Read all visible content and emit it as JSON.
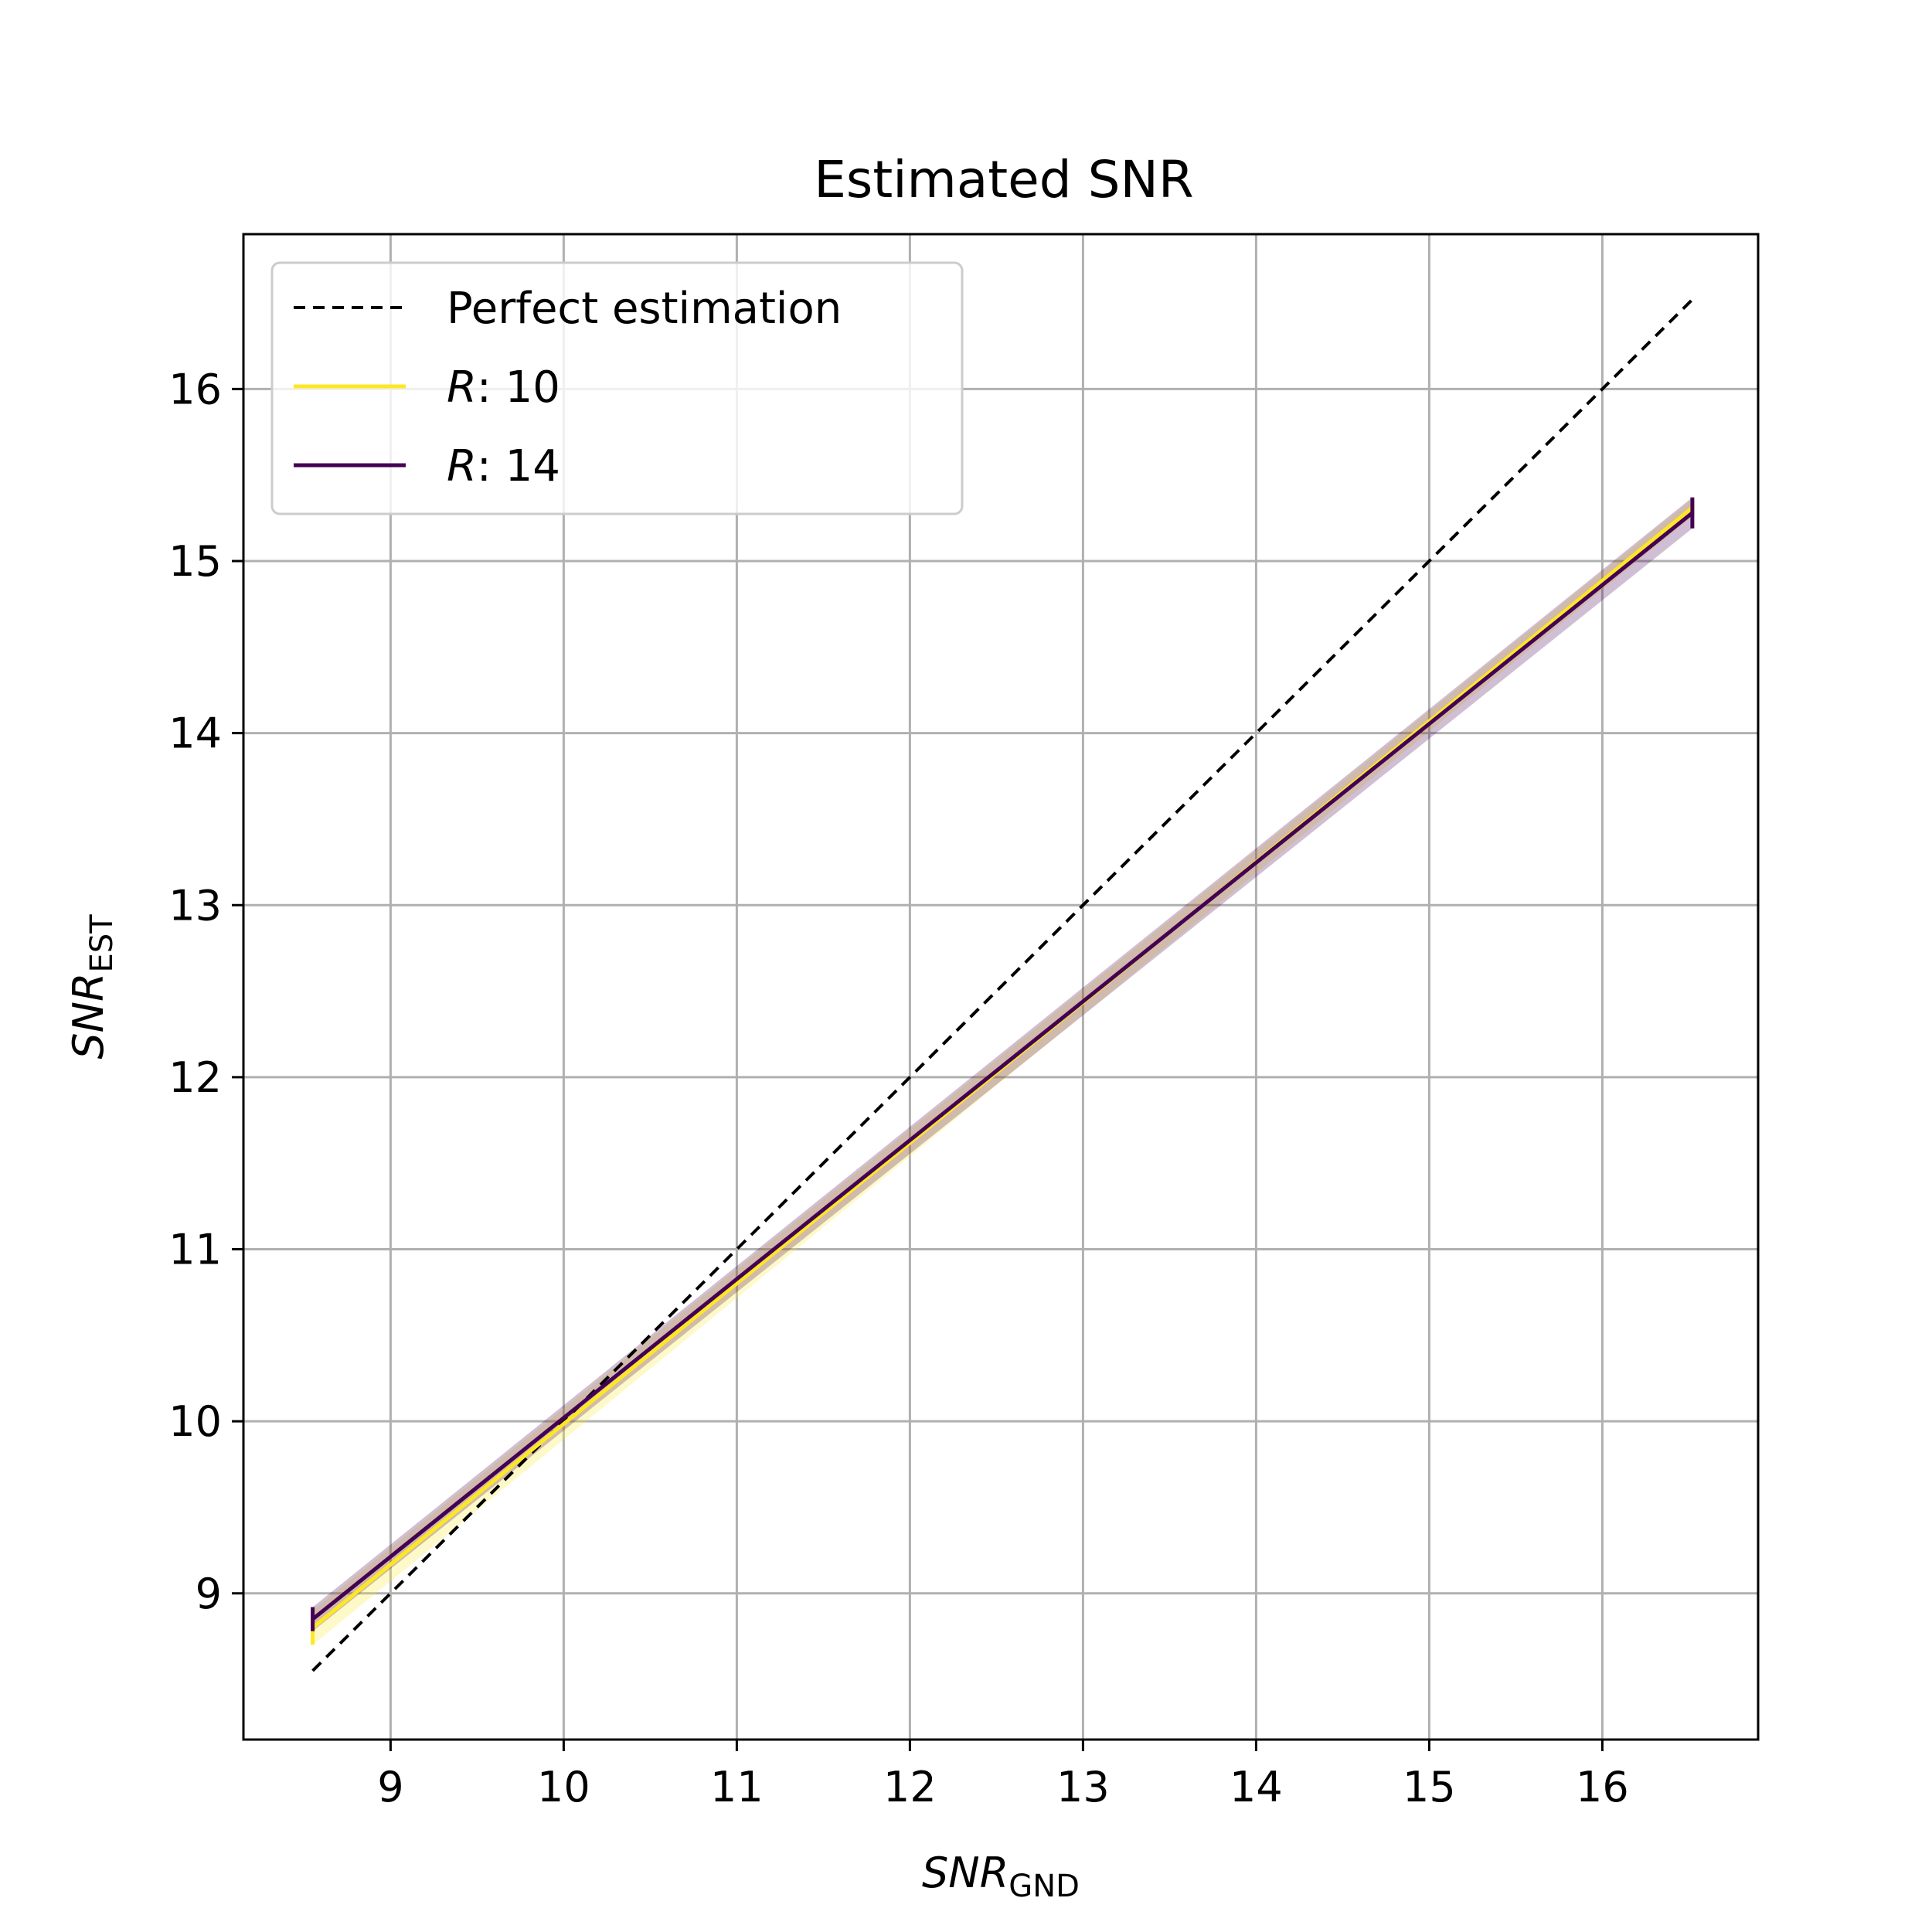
{
  "chart_data": {
    "type": "line",
    "title": "Estimated SNR",
    "xlabel": {
      "main": "SNR",
      "sub": "GND"
    },
    "ylabel": {
      "main": "SNR",
      "sub": "EST"
    },
    "xlim": [
      8.15,
      16.9
    ],
    "ylim": [
      8.15,
      16.9
    ],
    "xticks": [
      9,
      10,
      11,
      12,
      13,
      14,
      15,
      16
    ],
    "yticks": [
      9,
      10,
      11,
      12,
      13,
      14,
      15,
      16
    ],
    "grid": true,
    "legend_position": "top-left",
    "series": [
      {
        "name": "Perfect estimation",
        "legend_var": "",
        "legend_value": "Perfect estimation",
        "style": "dashed",
        "color": "#000000",
        "x": [
          8.55,
          16.52
        ],
        "y": [
          8.55,
          16.52
        ]
      },
      {
        "name": "R: 10",
        "legend_var": "R",
        "legend_value": ": 10",
        "style": "solid",
        "color": "#fde725",
        "band_color": "#fde725",
        "x": [
          8.55,
          16.52
        ],
        "y": [
          8.8,
          15.31
        ],
        "y_err": [
          0.1,
          0.05
        ]
      },
      {
        "name": "R: 14",
        "legend_var": "R",
        "legend_value": ": 14",
        "style": "solid",
        "color": "#440154",
        "band_color": "#440154",
        "x": [
          8.55,
          16.52
        ],
        "y": [
          8.85,
          15.28
        ],
        "y_err": [
          0.07,
          0.09
        ]
      }
    ]
  }
}
